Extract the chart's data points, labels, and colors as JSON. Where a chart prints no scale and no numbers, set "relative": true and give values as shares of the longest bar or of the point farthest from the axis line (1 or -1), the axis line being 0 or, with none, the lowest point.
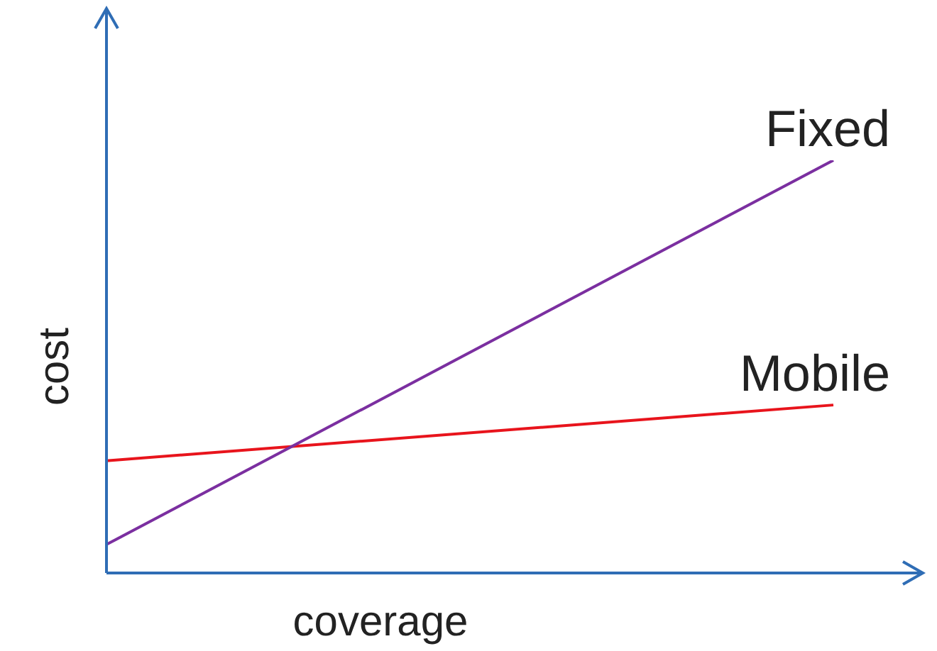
{
  "chart_data": {
    "type": "line",
    "relative": true,
    "xlabel": "coverage",
    "ylabel": "cost",
    "categories": [
      null,
      null
    ],
    "tick_labels": false,
    "legend": false,
    "marker": "none",
    "series": [
      {
        "name": "Fixed",
        "color": "#7b2fa0",
        "values": [
          0.069,
          1
        ]
      },
      {
        "name": "Mobile",
        "color": "#e8141c",
        "values": [
          0.272,
          0.407
        ]
      }
    ]
  }
}
